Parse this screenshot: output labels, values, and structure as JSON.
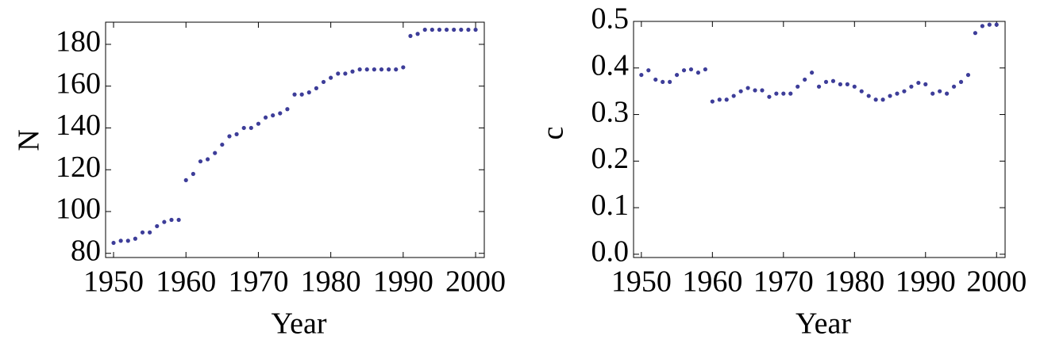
{
  "chart_data": [
    {
      "type": "scatter",
      "xlabel": "Year",
      "ylabel": "N",
      "color": "#3d3d99",
      "x": [
        1950,
        1951,
        1952,
        1953,
        1954,
        1955,
        1956,
        1957,
        1958,
        1959,
        1960,
        1961,
        1962,
        1963,
        1964,
        1965,
        1966,
        1967,
        1968,
        1969,
        1970,
        1971,
        1972,
        1973,
        1974,
        1975,
        1976,
        1977,
        1978,
        1979,
        1980,
        1981,
        1982,
        1983,
        1984,
        1985,
        1986,
        1987,
        1988,
        1989,
        1990,
        1991,
        1992,
        1993,
        1994,
        1995,
        1996,
        1997,
        1998,
        1999,
        2000
      ],
      "values": [
        85,
        86,
        86,
        87,
        90,
        90,
        93,
        95,
        96,
        96,
        115,
        118,
        124,
        125,
        128,
        132,
        136,
        137,
        140,
        140,
        142,
        145,
        146,
        147,
        149,
        156,
        156,
        157,
        159,
        162,
        164,
        166,
        166,
        167,
        168,
        168,
        168,
        168,
        168,
        168,
        169,
        184,
        185,
        187,
        187,
        187,
        187,
        187,
        187,
        187,
        187
      ],
      "xlim": [
        1948.9,
        2001.2
      ],
      "ylim": [
        78,
        190.6
      ],
      "xticks": [
        1950,
        1960,
        1970,
        1980,
        1990,
        2000
      ],
      "yticks": [
        80,
        100,
        120,
        140,
        160,
        180
      ]
    },
    {
      "type": "scatter",
      "xlabel": "Year",
      "ylabel": "c",
      "color": "#3d3d99",
      "x": [
        1950,
        1951,
        1952,
        1953,
        1954,
        1955,
        1956,
        1957,
        1958,
        1959,
        1960,
        1961,
        1962,
        1963,
        1964,
        1965,
        1966,
        1967,
        1968,
        1969,
        1970,
        1971,
        1972,
        1973,
        1974,
        1975,
        1976,
        1977,
        1978,
        1979,
        1980,
        1981,
        1982,
        1983,
        1984,
        1985,
        1986,
        1987,
        1988,
        1989,
        1990,
        1991,
        1992,
        1993,
        1994,
        1995,
        1996,
        1997,
        1998,
        1999,
        2000
      ],
      "values": [
        0.385,
        0.395,
        0.375,
        0.37,
        0.37,
        0.385,
        0.395,
        0.397,
        0.39,
        0.397,
        0.328,
        0.332,
        0.332,
        0.34,
        0.35,
        0.357,
        0.352,
        0.352,
        0.338,
        0.345,
        0.345,
        0.345,
        0.36,
        0.375,
        0.39,
        0.36,
        0.37,
        0.372,
        0.365,
        0.365,
        0.36,
        0.35,
        0.34,
        0.332,
        0.332,
        0.34,
        0.345,
        0.35,
        0.36,
        0.368,
        0.365,
        0.345,
        0.35,
        0.345,
        0.36,
        0.37,
        0.385,
        0.475,
        0.49,
        0.493,
        0.493
      ],
      "xlim": [
        1948.9,
        2001.2
      ],
      "ylim": [
        -0.007,
        0.5
      ],
      "xticks": [
        1950,
        1960,
        1970,
        1980,
        1990,
        2000
      ],
      "yticks": [
        {
          "value": 0,
          "label": "0.0"
        },
        0.1,
        0.2,
        0.3,
        0.4,
        0.5
      ]
    }
  ]
}
